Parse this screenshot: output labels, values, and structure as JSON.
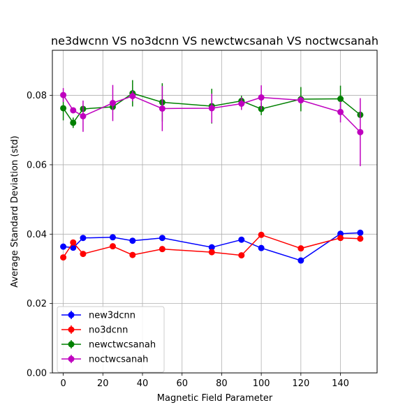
{
  "chart_data": {
    "type": "line",
    "title": "ne3dwcnn VS no3dcnn VS newctwcsanah VS noctwcsanah",
    "xlabel": "Magnetic Field Parameter",
    "ylabel": "Average Standard Deviation (std)",
    "xlim": [
      -5.5,
      158.5
    ],
    "ylim": [
      0.0,
      0.093
    ],
    "xticks": [
      0,
      20,
      40,
      60,
      80,
      100,
      120,
      140
    ],
    "xtick_labels": [
      "0",
      "20",
      "40",
      "60",
      "80",
      "100",
      "120",
      "140"
    ],
    "yticks": [
      0.0,
      0.02,
      0.04,
      0.06,
      0.08
    ],
    "ytick_labels": [
      "0.00",
      "0.02",
      "0.04",
      "0.06",
      "0.08"
    ],
    "grid": true,
    "legend_position": "lower-left",
    "x": [
      0,
      5,
      10,
      25,
      35,
      50,
      75,
      90,
      100,
      120,
      140,
      150
    ],
    "series": [
      {
        "name": "new3dcnn",
        "color": "#0000ff",
        "values": [
          0.0364,
          0.0361,
          0.0389,
          0.0391,
          0.0381,
          0.0389,
          0.0362,
          0.0384,
          0.036,
          0.0324,
          0.0401,
          0.0404
        ],
        "errors": [
          0.0003,
          0.0003,
          0.0003,
          0.0003,
          0.0003,
          0.0003,
          0.0003,
          0.0003,
          0.0003,
          0.0003,
          0.0003,
          0.0003
        ]
      },
      {
        "name": "no3dcnn",
        "color": "#ff0000",
        "values": [
          0.0333,
          0.0376,
          0.0343,
          0.0365,
          0.034,
          0.0357,
          0.0348,
          0.0339,
          0.0398,
          0.0359,
          0.0389,
          0.0387
        ],
        "errors": [
          0.0003,
          0.0003,
          0.0003,
          0.0003,
          0.0003,
          0.0003,
          0.0003,
          0.0003,
          0.0003,
          0.0003,
          0.0003,
          0.0003
        ]
      },
      {
        "name": "newctwcsanah",
        "color": "#008000",
        "values": [
          0.0763,
          0.0721,
          0.0761,
          0.0767,
          0.0806,
          0.078,
          0.0769,
          0.0784,
          0.0761,
          0.0789,
          0.079,
          0.0744
        ],
        "errors": [
          0.0035,
          0.0015,
          0.001,
          0.001,
          0.0038,
          0.0055,
          0.005,
          0.0015,
          0.0018,
          0.0035,
          0.0038,
          0.001
        ]
      },
      {
        "name": "noctwcsanah",
        "color": "#bf00bf",
        "values": [
          0.0801,
          0.0757,
          0.074,
          0.0778,
          0.0798,
          0.0762,
          0.0763,
          0.0776,
          0.0794,
          0.0786,
          0.0752,
          0.0694
        ],
        "errors": [
          0.002,
          0.0005,
          0.0045,
          0.0052,
          0.0015,
          0.0065,
          0.0042,
          0.0018,
          0.0035,
          0.001,
          0.003,
          0.0098
        ]
      }
    ]
  }
}
